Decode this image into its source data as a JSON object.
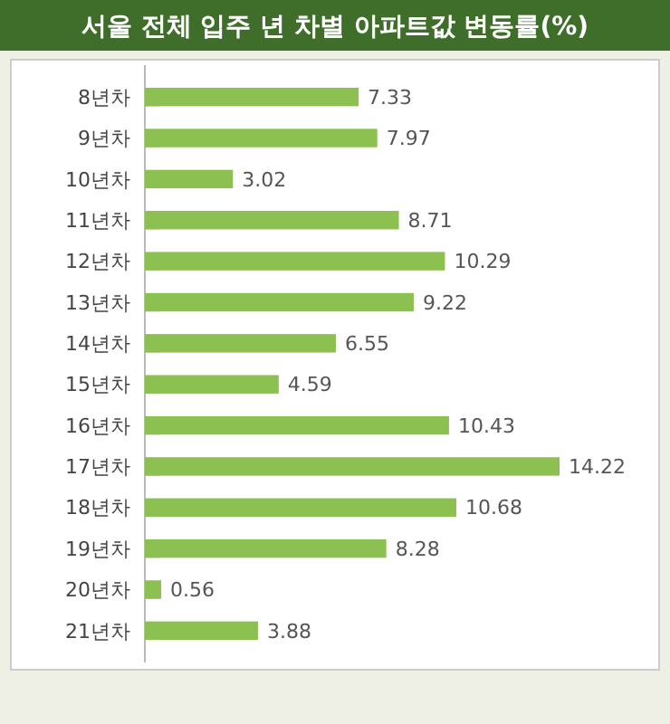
{
  "chart_data": {
    "type": "bar",
    "orientation": "horizontal",
    "title": "서울 전체 입주 년 차별 아파트값 변동률(%)",
    "categories": [
      "8년차",
      "9년차",
      "10년차",
      "11년차",
      "12년차",
      "13년차",
      "14년차",
      "15년차",
      "16년차",
      "17년차",
      "18년차",
      "19년차",
      "20년차",
      "21년차"
    ],
    "values": [
      7.33,
      7.97,
      3.02,
      8.71,
      10.29,
      9.22,
      6.55,
      4.59,
      10.43,
      14.22,
      10.68,
      8.28,
      0.56,
      3.88
    ],
    "color": "#8cc152",
    "data_labels": true
  }
}
